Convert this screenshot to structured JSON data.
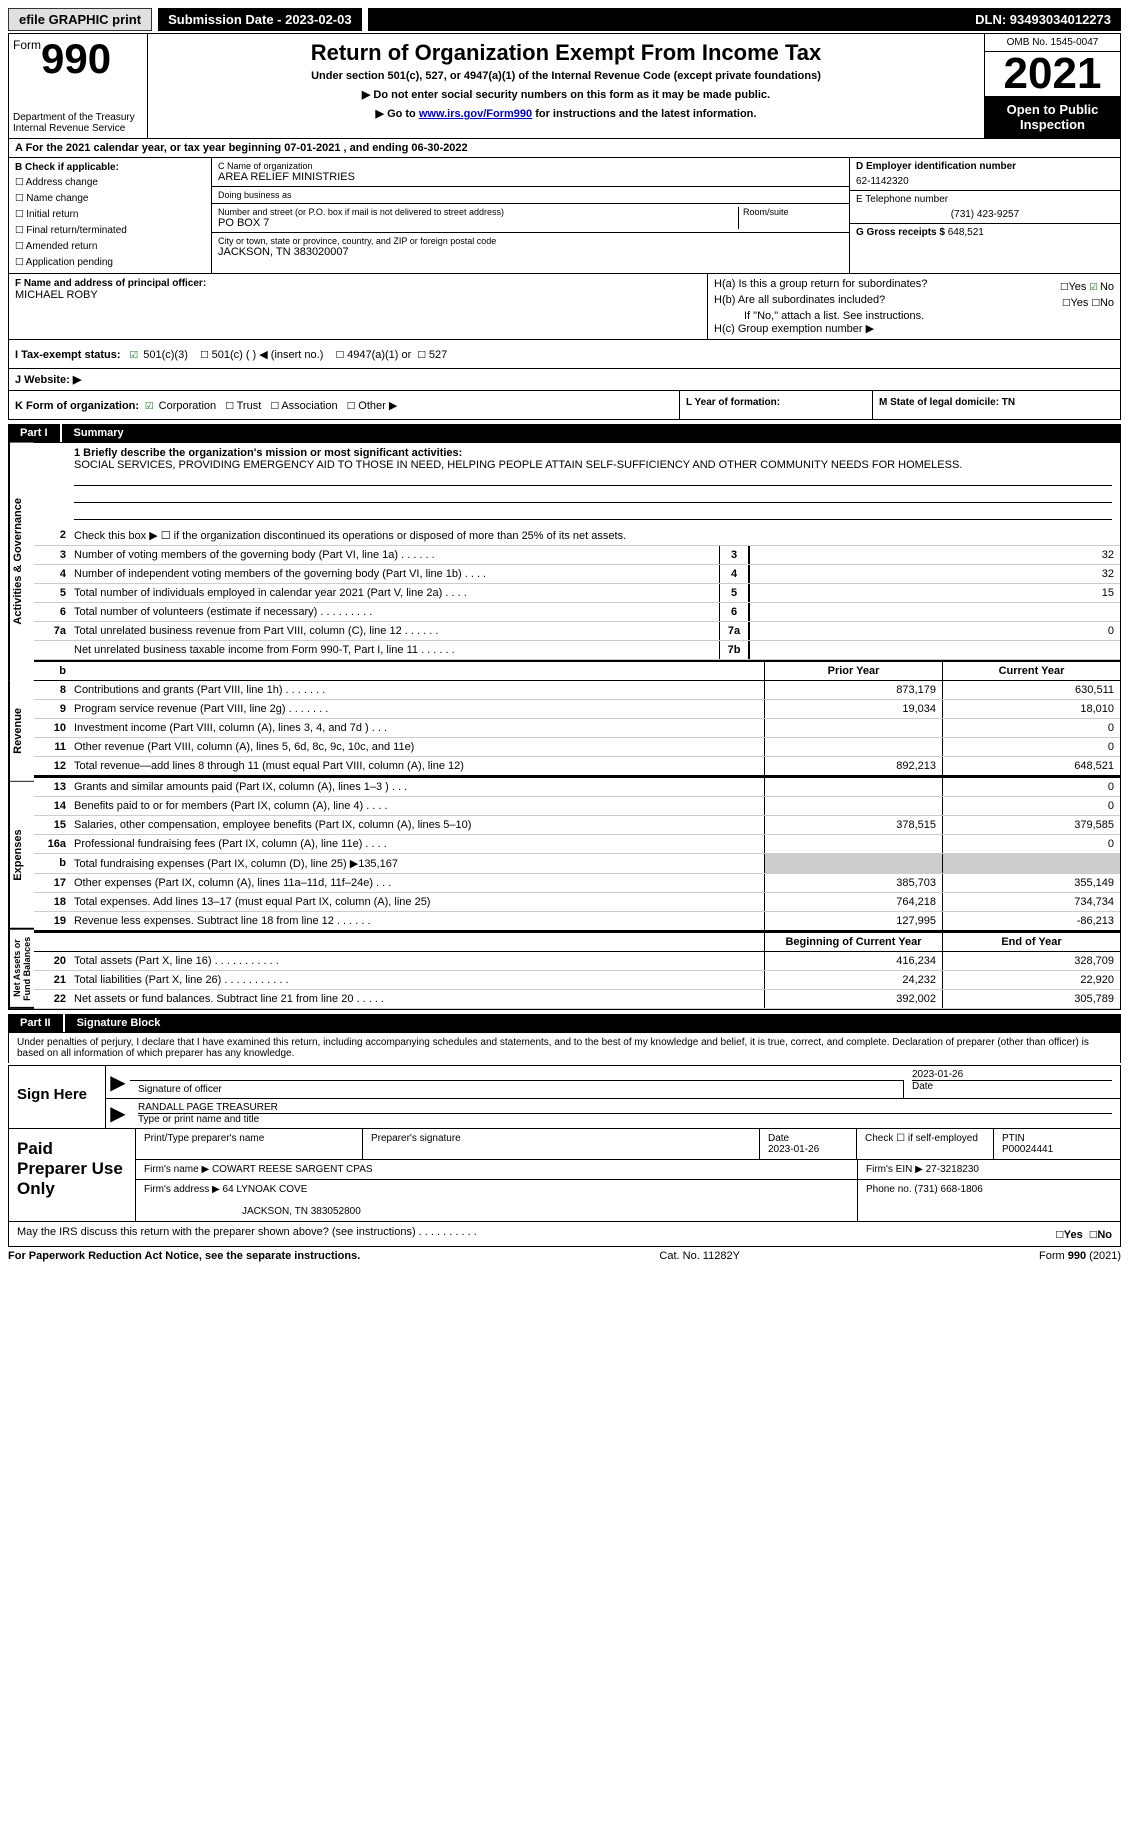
{
  "topbar": {
    "efile": "efile GRAPHIC print",
    "submission_label": "Submission Date - 2023-02-03",
    "dln": "DLN: 93493034012273"
  },
  "header": {
    "form_word": "Form",
    "form_num": "990",
    "dept": "Department of the Treasury Internal Revenue Service",
    "title": "Return of Organization Exempt From Income Tax",
    "subtitle": "Under section 501(c), 527, or 4947(a)(1) of the Internal Revenue Code (except private foundations)",
    "note1": "▶ Do not enter social security numbers on this form as it may be made public.",
    "note2_pre": "▶ Go to ",
    "note2_link": "www.irs.gov/Form990",
    "note2_post": " for instructions and the latest information.",
    "omb": "OMB No. 1545-0047",
    "year": "2021",
    "open": "Open to Public Inspection"
  },
  "lineA": "A For the 2021 calendar year, or tax year beginning 07-01-2021    , and ending 06-30-2022",
  "boxB": {
    "label": "B Check if applicable:",
    "opts": [
      "Address change",
      "Name change",
      "Initial return",
      "Final return/terminated",
      "Amended return",
      "Application pending"
    ]
  },
  "boxC": {
    "name_label": "C Name of organization",
    "name": "AREA RELIEF MINISTRIES",
    "dba_label": "Doing business as",
    "dba": "",
    "street_label": "Number and street (or P.O. box if mail is not delivered to street address)",
    "room_label": "Room/suite",
    "street": "PO BOX 7",
    "city_label": "City or town, state or province, country, and ZIP or foreign postal code",
    "city": "JACKSON, TN  383020007"
  },
  "boxD": {
    "label": "D Employer identification number",
    "val": "62-1142320"
  },
  "boxE": {
    "label": "E Telephone number",
    "val": "(731) 423-9257"
  },
  "boxG": {
    "label": "G Gross receipts $",
    "val": "648,521"
  },
  "boxF": {
    "label": "F Name and address of principal officer:",
    "val": "MICHAEL ROBY"
  },
  "boxH": {
    "a": "H(a)  Is this a group return for subordinates?",
    "a_yes": "Yes",
    "a_no": "No",
    "b": "H(b)  Are all subordinates included?",
    "b_yes": "Yes",
    "b_no": "No",
    "b_note": "If \"No,\" attach a list. See instructions.",
    "c": "H(c)  Group exemption number ▶"
  },
  "boxI": {
    "label": "I  Tax-exempt status:",
    "o1": "501(c)(3)",
    "o2": "501(c) (  ) ◀ (insert no.)",
    "o3": "4947(a)(1) or",
    "o4": "527"
  },
  "boxJ": {
    "label": "J  Website: ▶"
  },
  "boxK": {
    "label": "K Form of organization:",
    "o1": "Corporation",
    "o2": "Trust",
    "o3": "Association",
    "o4": "Other ▶"
  },
  "boxL": {
    "label": "L Year of formation:"
  },
  "boxM": {
    "label": "M State of legal domicile: TN"
  },
  "partI": {
    "num": "Part I",
    "title": "Summary"
  },
  "summary": {
    "sec1_label": "Activities & Governance",
    "l1_label": "1  Briefly describe the organization's mission or most significant activities:",
    "l1_val": "SOCIAL SERVICES, PROVIDING EMERGENCY AID TO THOSE IN NEED, HELPING PEOPLE ATTAIN SELF-SUFFICIENCY AND OTHER COMMUNITY NEEDS FOR HOMELESS.",
    "l2": "Check this box ▶ ☐ if the organization discontinued its operations or disposed of more than 25% of its net assets.",
    "rows_gov": [
      {
        "n": "3",
        "d": "Number of voting members of the governing body (Part VI, line 1a)   .   .   .   .   .   .",
        "b": "3",
        "v": "32"
      },
      {
        "n": "4",
        "d": "Number of independent voting members of the governing body (Part VI, line 1b)  .   .   .   .",
        "b": "4",
        "v": "32"
      },
      {
        "n": "5",
        "d": "Total number of individuals employed in calendar year 2021 (Part V, line 2a)   .   .   .   .",
        "b": "5",
        "v": "15"
      },
      {
        "n": "6",
        "d": "Total number of volunteers (estimate if necessary)    .   .   .   .   .   .   .   .   .",
        "b": "6",
        "v": ""
      },
      {
        "n": "7a",
        "d": "Total unrelated business revenue from Part VIII, column (C), line 12   .   .   .   .   .   .",
        "b": "7a",
        "v": "0"
      },
      {
        "n": "",
        "d": "Net unrelated business taxable income from Form 990-T, Part I, line 11   .   .   .   .   .   .",
        "b": "7b",
        "v": ""
      }
    ],
    "prior_hdr": "Prior Year",
    "current_hdr": "Current Year",
    "sec2_label": "Revenue",
    "rows_rev": [
      {
        "n": "8",
        "d": "Contributions and grants (Part VIII, line 1h)   .   .   .   .   .   .   .",
        "p": "873,179",
        "c": "630,511"
      },
      {
        "n": "9",
        "d": "Program service revenue (Part VIII, line 2g)   .   .   .   .   .   .   .",
        "p": "19,034",
        "c": "18,010"
      },
      {
        "n": "10",
        "d": "Investment income (Part VIII, column (A), lines 3, 4, and 7d )   .   .   .",
        "p": "",
        "c": "0"
      },
      {
        "n": "11",
        "d": "Other revenue (Part VIII, column (A), lines 5, 6d, 8c, 9c, 10c, and 11e)",
        "p": "",
        "c": "0"
      },
      {
        "n": "12",
        "d": "Total revenue—add lines 8 through 11 (must equal Part VIII, column (A), line 12)",
        "p": "892,213",
        "c": "648,521"
      }
    ],
    "sec3_label": "Expenses",
    "rows_exp": [
      {
        "n": "13",
        "d": "Grants and similar amounts paid (Part IX, column (A), lines 1–3 )   .   .   .",
        "p": "",
        "c": "0"
      },
      {
        "n": "14",
        "d": "Benefits paid to or for members (Part IX, column (A), line 4)   .   .   .   .",
        "p": "",
        "c": "0"
      },
      {
        "n": "15",
        "d": "Salaries, other compensation, employee benefits (Part IX, column (A), lines 5–10)",
        "p": "378,515",
        "c": "379,585"
      },
      {
        "n": "16a",
        "d": "Professional fundraising fees (Part IX, column (A), line 11e)   .   .   .   .",
        "p": "",
        "c": "0"
      },
      {
        "n": "b",
        "d": "Total fundraising expenses (Part IX, column (D), line 25) ▶135,167",
        "p": "SHADE",
        "c": "SHADE"
      },
      {
        "n": "17",
        "d": "Other expenses (Part IX, column (A), lines 11a–11d, 11f–24e)   .   .   .",
        "p": "385,703",
        "c": "355,149"
      },
      {
        "n": "18",
        "d": "Total expenses. Add lines 13–17 (must equal Part IX, column (A), line 25)",
        "p": "764,218",
        "c": "734,734"
      },
      {
        "n": "19",
        "d": "Revenue less expenses. Subtract line 18 from line 12   .   .   .   .   .   .",
        "p": "127,995",
        "c": "-86,213"
      }
    ],
    "beg_hdr": "Beginning of Current Year",
    "end_hdr": "End of Year",
    "sec4_label": "Net Assets or Fund Balances",
    "rows_net": [
      {
        "n": "20",
        "d": "Total assets (Part X, line 16)   .   .   .   .   .   .   .   .   .   .   .",
        "p": "416,234",
        "c": "328,709"
      },
      {
        "n": "21",
        "d": "Total liabilities (Part X, line 26)   .   .   .   .   .   .   .   .   .   .   .",
        "p": "24,232",
        "c": "22,920"
      },
      {
        "n": "22",
        "d": "Net assets or fund balances. Subtract line 21 from line 20   .   .   .   .   .",
        "p": "392,002",
        "c": "305,789"
      }
    ]
  },
  "partII": {
    "num": "Part II",
    "title": "Signature Block"
  },
  "penalty": "Under penalties of perjury, I declare that I have examined this return, including accompanying schedules and statements, and to the best of my knowledge and belief, it is true, correct, and complete. Declaration of preparer (other than officer) is based on all information of which preparer has any knowledge.",
  "sign": {
    "label": "Sign Here",
    "sig_officer": "Signature of officer",
    "date": "2023-01-26",
    "date_label": "Date",
    "name": "RANDALL PAGE  TREASURER",
    "name_label": "Type or print name and title"
  },
  "paid": {
    "label": "Paid Preparer Use Only",
    "prep_name_label": "Print/Type preparer's name",
    "prep_sig_label": "Preparer's signature",
    "prep_date_label": "Date",
    "prep_date": "2023-01-26",
    "check_label": "Check ☐ if self-employed",
    "ptin_label": "PTIN",
    "ptin": "P00024441",
    "firm_name_label": "Firm's name    ▶",
    "firm_name": "COWART REESE SARGENT CPAS",
    "firm_ein_label": "Firm's EIN ▶",
    "firm_ein": "27-3218230",
    "firm_addr_label": "Firm's address ▶",
    "firm_addr1": "64 LYNOAK COVE",
    "firm_addr2": "JACKSON, TN  383052800",
    "phone_label": "Phone no.",
    "phone": "(731) 668-1806"
  },
  "discuss": "May the IRS discuss this return with the preparer shown above? (see instructions)   .   .   .   .   .   .   .   .   .   .",
  "discuss_yes": "Yes",
  "discuss_no": "No",
  "footer": {
    "paperwork": "For Paperwork Reduction Act Notice, see the separate instructions.",
    "cat": "Cat. No. 11282Y",
    "form": "Form 990 (2021)"
  }
}
